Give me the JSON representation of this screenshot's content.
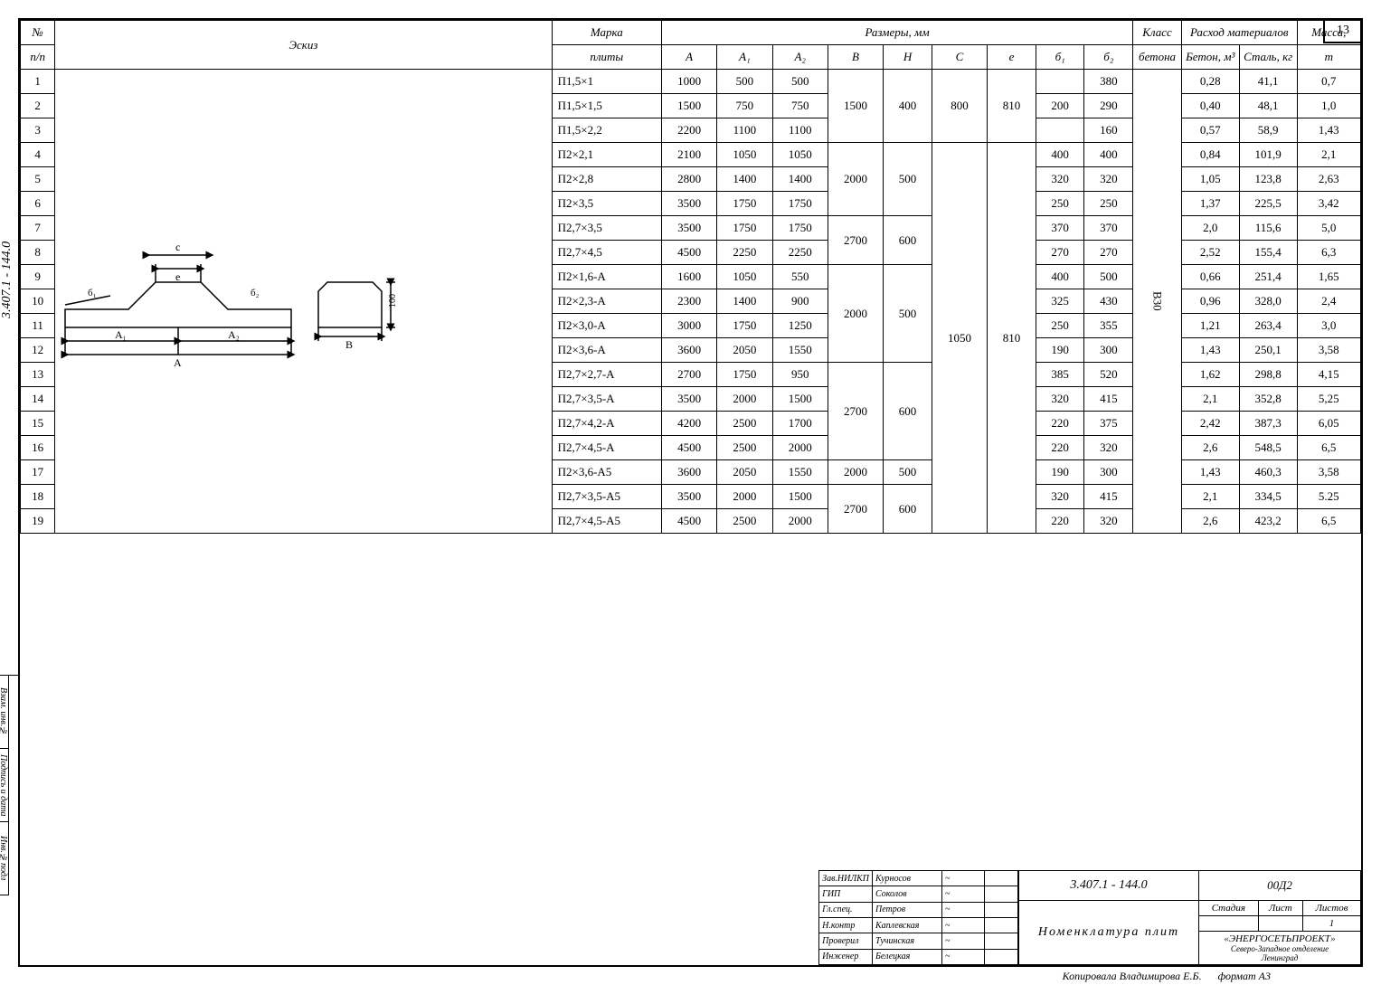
{
  "page_number": "13",
  "side_code": "3.407.1 - 144.0",
  "side_blocks": [
    "Инв.№подл",
    "Подпись и дата",
    "Взам. инв.№"
  ],
  "headers": {
    "n": "№",
    "np": "п/п",
    "eskiz": "Эскиз",
    "marka": "Марка",
    "plity": "плиты",
    "razmery": "Размеры, мм",
    "A": "А",
    "A1": "А₁",
    "A2": "А₂",
    "B": "В",
    "H": "Н",
    "C": "С",
    "e": "е",
    "b1": "б₁",
    "b2": "б₂",
    "klass": "Класс",
    "klass2": "бетона",
    "rashod": "Расход материалов",
    "beton": "Бетон, м³",
    "stal": "Сталь, кг",
    "massa": "Масса,",
    "massa2": "т"
  },
  "klass_val": "В30",
  "rows": [
    {
      "n": "1",
      "marka": "П1,5×1",
      "A": "1000",
      "A1": "500",
      "A2": "500",
      "B": "",
      "H": "",
      "C": "",
      "e": "",
      "b1": "",
      "b2": "380",
      "beton": "0,28",
      "stal": "41,1",
      "massa": "0,7",
      "g": 1
    },
    {
      "n": "2",
      "marka": "П1,5×1,5",
      "A": "1500",
      "A1": "750",
      "A2": "750",
      "B": "1500",
      "H": "400",
      "C": "800",
      "e": "810",
      "b1": "200",
      "b2": "290",
      "beton": "0,40",
      "stal": "48,1",
      "massa": "1,0",
      "g": 1
    },
    {
      "n": "3",
      "marka": "П1,5×2,2",
      "A": "2200",
      "A1": "1100",
      "A2": "1100",
      "B": "",
      "H": "",
      "C": "",
      "e": "",
      "b1": "",
      "b2": "160",
      "beton": "0,57",
      "stal": "58,9",
      "massa": "1,43",
      "g": 1
    },
    {
      "n": "4",
      "marka": "П2×2,1",
      "A": "2100",
      "A1": "1050",
      "A2": "1050",
      "B": "",
      "H": "",
      "C": "",
      "e": "",
      "b1": "400",
      "b2": "400",
      "beton": "0,84",
      "stal": "101,9",
      "massa": "2,1",
      "g": 2
    },
    {
      "n": "5",
      "marka": "П2×2,8",
      "A": "2800",
      "A1": "1400",
      "A2": "1400",
      "B": "2000",
      "H": "500",
      "C": "",
      "e": "",
      "b1": "320",
      "b2": "320",
      "beton": "1,05",
      "stal": "123,8",
      "massa": "2,63",
      "g": 2
    },
    {
      "n": "6",
      "marka": "П2×3,5",
      "A": "3500",
      "A1": "1750",
      "A2": "1750",
      "B": "",
      "H": "",
      "C": "",
      "e": "",
      "b1": "250",
      "b2": "250",
      "beton": "1,37",
      "stal": "225,5",
      "massa": "3,42",
      "g": 2
    },
    {
      "n": "7",
      "marka": "П2,7×3,5",
      "A": "3500",
      "A1": "1750",
      "A2": "1750",
      "B": "",
      "H": "",
      "C": "",
      "e": "",
      "b1": "370",
      "b2": "370",
      "beton": "2,0",
      "stal": "115,6",
      "massa": "5,0",
      "g": 3
    },
    {
      "n": "8",
      "marka": "П2,7×4,5",
      "A": "4500",
      "A1": "2250",
      "A2": "2250",
      "B": "2700",
      "H": "600",
      "C": "",
      "e": "",
      "b1": "270",
      "b2": "270",
      "beton": "2,52",
      "stal": "155,4",
      "massa": "6,3",
      "g": 3
    },
    {
      "n": "9",
      "marka": "П2×1,6-А",
      "A": "1600",
      "A1": "1050",
      "A2": "550",
      "B": "",
      "H": "",
      "C": "",
      "e": "",
      "b1": "400",
      "b2": "500",
      "beton": "0,66",
      "stal": "251,4",
      "massa": "1,65",
      "g": 4
    },
    {
      "n": "10",
      "marka": "П2×2,3-А",
      "A": "2300",
      "A1": "1400",
      "A2": "900",
      "B": "",
      "H": "",
      "C": "",
      "e": "",
      "b1": "325",
      "b2": "430",
      "beton": "0,96",
      "stal": "328,0",
      "massa": "2,4",
      "g": 4
    },
    {
      "n": "11",
      "marka": "П2×3,0-А",
      "A": "3000",
      "A1": "1750",
      "A2": "1250",
      "B": "2000",
      "H": "500",
      "C": "1050",
      "e": "810",
      "b1": "250",
      "b2": "355",
      "beton": "1,21",
      "stal": "263,4",
      "massa": "3,0",
      "g": 4
    },
    {
      "n": "12",
      "marka": "П2×3,6-А",
      "A": "3600",
      "A1": "2050",
      "A2": "1550",
      "B": "",
      "H": "",
      "C": "",
      "e": "",
      "b1": "190",
      "b2": "300",
      "beton": "1,43",
      "stal": "250,1",
      "massa": "3,58",
      "g": 4
    },
    {
      "n": "13",
      "marka": "П2,7×2,7-А",
      "A": "2700",
      "A1": "1750",
      "A2": "950",
      "B": "",
      "H": "",
      "C": "",
      "e": "",
      "b1": "385",
      "b2": "520",
      "beton": "1,62",
      "stal": "298,8",
      "massa": "4,15",
      "g": 5
    },
    {
      "n": "14",
      "marka": "П2,7×3,5-А",
      "A": "3500",
      "A1": "2000",
      "A2": "1500",
      "B": "",
      "H": "",
      "C": "",
      "e": "",
      "b1": "320",
      "b2": "415",
      "beton": "2,1",
      "stal": "352,8",
      "massa": "5,25",
      "g": 5
    },
    {
      "n": "15",
      "marka": "П2,7×4,2-А",
      "A": "4200",
      "A1": "2500",
      "A2": "1700",
      "B": "2700",
      "H": "600",
      "C": "",
      "e": "",
      "b1": "220",
      "b2": "375",
      "beton": "2,42",
      "stal": "387,3",
      "massa": "6,05",
      "g": 5
    },
    {
      "n": "16",
      "marka": "П2,7×4,5-А",
      "A": "4500",
      "A1": "2500",
      "A2": "2000",
      "B": "",
      "H": "",
      "C": "",
      "e": "",
      "b1": "220",
      "b2": "320",
      "beton": "2,6",
      "stal": "548,5",
      "massa": "6,5",
      "g": 5
    },
    {
      "n": "17",
      "marka": "П2×3,6-А5",
      "A": "3600",
      "A1": "2050",
      "A2": "1550",
      "B": "2000",
      "H": "500",
      "C": "",
      "e": "",
      "b1": "190",
      "b2": "300",
      "beton": "1,43",
      "stal": "460,3",
      "massa": "3,58",
      "g": 6
    },
    {
      "n": "18",
      "marka": "П2,7×3,5-А5",
      "A": "3500",
      "A1": "2000",
      "A2": "1500",
      "B": "",
      "H": "",
      "C": "",
      "e": "",
      "b1": "320",
      "b2": "415",
      "beton": "2,1",
      "stal": "334,5",
      "massa": "5.25",
      "g": 7
    },
    {
      "n": "19",
      "marka": "П2,7×4,5-А5",
      "A": "4500",
      "A1": "2500",
      "A2": "2000",
      "B": "2700",
      "H": "600",
      "C": "",
      "e": "",
      "b1": "220",
      "b2": "320",
      "beton": "2,6",
      "stal": "423,2",
      "massa": "6,5",
      "g": 7
    }
  ],
  "groups_BH": {
    "1": {
      "B": "1500",
      "H": "400",
      "C": "800",
      "e": "810",
      "span": 3
    },
    "2": {
      "B": "2000",
      "H": "500",
      "span": 3
    },
    "3": {
      "B": "2700",
      "H": "600",
      "span": 2
    },
    "4": {
      "B": "2000",
      "H": "500",
      "C": "1050",
      "e": "810",
      "span": 4
    },
    "5": {
      "B": "2700",
      "H": "600",
      "span": 4
    },
    "6": {
      "B": "2000",
      "H": "500",
      "span": 1
    },
    "7": {
      "B": "2700",
      "H": "600",
      "span": 2
    }
  },
  "title_block": {
    "roles": [
      {
        "role": "Зав.НИЛКП",
        "name": "Курносов"
      },
      {
        "role": "ГИП",
        "name": "Соколов"
      },
      {
        "role": "Гл.спец.",
        "name": "Петров"
      },
      {
        "role": "Н.контр",
        "name": "Каплевская"
      },
      {
        "role": "Проверил",
        "name": "Тучинская"
      },
      {
        "role": "Инженер",
        "name": "Белецкая"
      }
    ],
    "doc_code": "3.407.1 - 144.0",
    "doc_sub": "00Д2",
    "title": "Номенклатура плит",
    "stadiya": "Стадия",
    "list": "Лист",
    "listov": "Листов",
    "listov_val": "1",
    "org": "«ЭНЕРГОСЕТЬПРОЕКТ»",
    "org2": "Северо-Западное отделение",
    "org3": "Ленинград"
  },
  "footer": {
    "kopir": "Копировала Владимирова Е.Б.",
    "format": "формат А3"
  },
  "sketch_labels": {
    "c": "с",
    "e": "е",
    "b1": "б₁",
    "b2": "б₂",
    "h100": "100",
    "A1": "А₁",
    "A2": "А₂",
    "A": "А",
    "B": "В"
  }
}
